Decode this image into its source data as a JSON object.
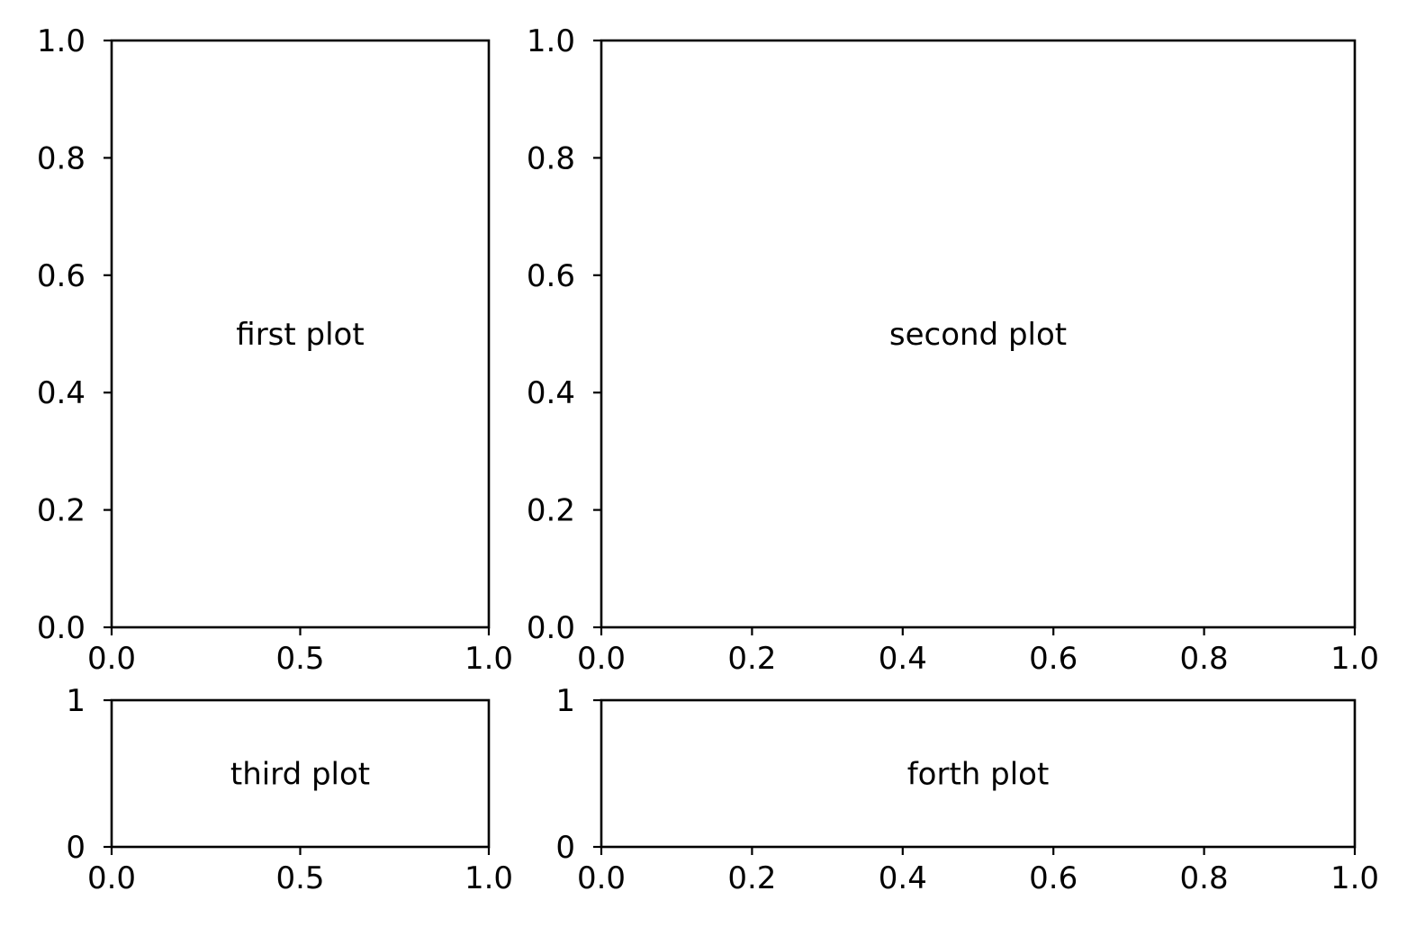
{
  "chart_data": [
    {
      "type": "empty",
      "annotation": "first plot",
      "xlim": [
        0,
        1
      ],
      "ylim": [
        0,
        1
      ],
      "xticks": [
        "0.0",
        "0.5",
        "1.0"
      ],
      "yticks": [
        "0.0",
        "0.2",
        "0.4",
        "0.6",
        "0.8",
        "1.0"
      ],
      "grid": false
    },
    {
      "type": "empty",
      "annotation": "second plot",
      "xlim": [
        0,
        1
      ],
      "ylim": [
        0,
        1
      ],
      "xticks": [
        "0.0",
        "0.2",
        "0.4",
        "0.6",
        "0.8",
        "1.0"
      ],
      "yticks": [
        "0.0",
        "0.2",
        "0.4",
        "0.6",
        "0.8",
        "1.0"
      ],
      "grid": false
    },
    {
      "type": "empty",
      "annotation": "third plot",
      "xlim": [
        0,
        1
      ],
      "ylim": [
        0,
        1
      ],
      "xticks": [
        "0.0",
        "0.5",
        "1.0"
      ],
      "yticks": [
        "0",
        "1"
      ],
      "grid": false
    },
    {
      "type": "empty",
      "annotation": "forth plot",
      "xlim": [
        0,
        1
      ],
      "ylim": [
        0,
        1
      ],
      "xticks": [
        "0.0",
        "0.2",
        "0.4",
        "0.6",
        "0.8",
        "1.0"
      ],
      "yticks": [
        "0",
        "1"
      ],
      "grid": false
    }
  ]
}
